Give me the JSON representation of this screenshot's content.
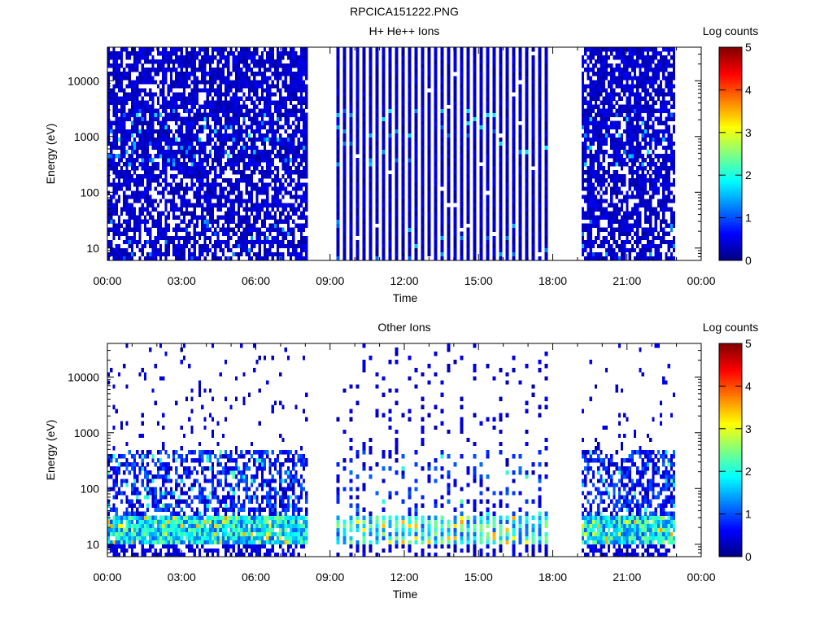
{
  "filename": "RPCICA151222.PNG",
  "chart_data": [
    {
      "type": "heatmap",
      "title": "H+ He++ Ions",
      "xlabel": "Time",
      "ylabel": "Energy (eV)",
      "yscale": "log",
      "ylim": [
        6,
        40000
      ],
      "xlim": [
        "00:00",
        "24:00"
      ],
      "x_ticks": [
        "00:00",
        "03:00",
        "06:00",
        "09:00",
        "12:00",
        "15:00",
        "18:00",
        "21:00",
        "00:00"
      ],
      "y_ticks": [
        "10",
        "100",
        "1000",
        "10000"
      ],
      "colorbar": {
        "label": "Log counts",
        "range": [
          0,
          5
        ],
        "ticks": [
          "0",
          "1",
          "2",
          "3",
          "4",
          "5"
        ]
      },
      "data_intervals": [
        {
          "start": "00:00",
          "end": "08:00",
          "mode": "dense"
        },
        {
          "start": "09:15",
          "end": "17:55",
          "mode": "striped"
        },
        {
          "start": "19:10",
          "end": "22:55",
          "mode": "dense"
        }
      ],
      "typical_log_counts": 0.3,
      "peak_log_counts": 1.8
    },
    {
      "type": "heatmap",
      "title": "Other Ions",
      "xlabel": "Time",
      "ylabel": "Energy (eV)",
      "yscale": "log",
      "ylim": [
        6,
        40000
      ],
      "xlim": [
        "00:00",
        "24:00"
      ],
      "x_ticks": [
        "00:00",
        "03:00",
        "06:00",
        "09:00",
        "12:00",
        "15:00",
        "18:00",
        "21:00",
        "00:00"
      ],
      "y_ticks": [
        "10",
        "100",
        "1000",
        "10000"
      ],
      "colorbar": {
        "label": "Log counts",
        "range": [
          0,
          5
        ],
        "ticks": [
          "0",
          "1",
          "2",
          "3",
          "4",
          "5"
        ]
      },
      "data_intervals": [
        {
          "start": "00:00",
          "end": "08:00",
          "mode": "sparse"
        },
        {
          "start": "09:15",
          "end": "17:55",
          "mode": "striped-sparse"
        },
        {
          "start": "19:10",
          "end": "22:55",
          "mode": "sparse"
        }
      ],
      "enhanced_band_eV": [
        10,
        30
      ],
      "peak_log_counts": 3.5
    }
  ]
}
